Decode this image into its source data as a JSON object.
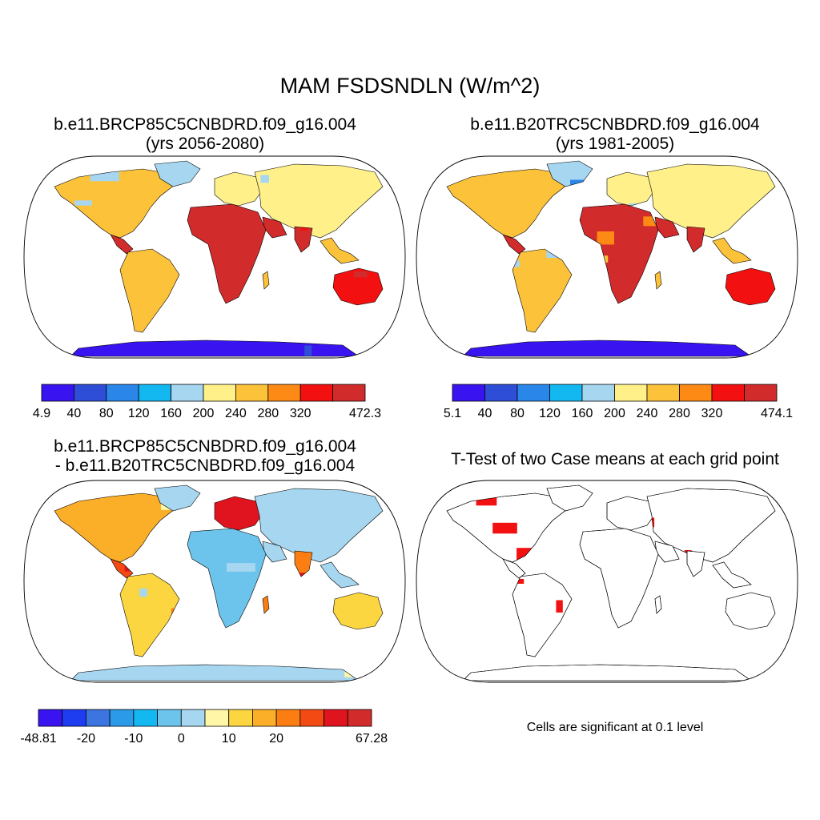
{
  "title": "MAM FSDSNDLN (W/m^2)",
  "panels": [
    {
      "id": "case1",
      "title_line1": "b.e11.BRCP85C5CNBDRD.f09_g16.004",
      "title_line2": "(yrs 2056-2080)",
      "colorbar": {
        "colors": [
          "#3a14f0",
          "#2e4ed8",
          "#2b86ea",
          "#14b8f0",
          "#a6d6f0",
          "#fff08a",
          "#fbc23a",
          "#fc8a14",
          "#f31010",
          "#d22b2b"
        ],
        "labels": [
          "4.9",
          "40",
          "80",
          "120",
          "160",
          "200",
          "240",
          "280",
          "320",
          "472.3"
        ]
      }
    },
    {
      "id": "case2",
      "title_line1": "b.e11.B20TRC5CNBDRD.f09_g16.004",
      "title_line2": "(yrs 1981-2005)",
      "colorbar": {
        "colors": [
          "#3a14f0",
          "#2e4ed8",
          "#2b86ea",
          "#14b8f0",
          "#a6d6f0",
          "#fff08a",
          "#fbc23a",
          "#fc8a14",
          "#f31010",
          "#d22b2b"
        ],
        "labels": [
          "5.1",
          "40",
          "80",
          "120",
          "160",
          "200",
          "240",
          "280",
          "320",
          "474.1"
        ]
      }
    },
    {
      "id": "difference",
      "title_line1": "b.e11.BRCP85C5CNBDRD.f09_g16.004",
      "title_line2": "- b.e11.B20TRC5CNBDRD.f09_g16.004",
      "colorbar": {
        "colors": [
          "#3a14f0",
          "#1e3cf0",
          "#3c74e0",
          "#2b9ae8",
          "#14b8f0",
          "#6cc4ec",
          "#a6d6f0",
          "#fff6a8",
          "#fcd640",
          "#fbae28",
          "#fc7e12",
          "#f34a14",
          "#e0141e",
          "#d22b2b"
        ],
        "labels": [
          "-48.81",
          "",
          "-20",
          "",
          "-10",
          "",
          "0",
          "",
          "10",
          "",
          "20",
          "",
          "",
          "67.28"
        ]
      }
    },
    {
      "id": "ttest",
      "title_line1": "T-Test of two Case means at each grid point",
      "note": "Cells are significant at 0.1 level"
    }
  ]
}
